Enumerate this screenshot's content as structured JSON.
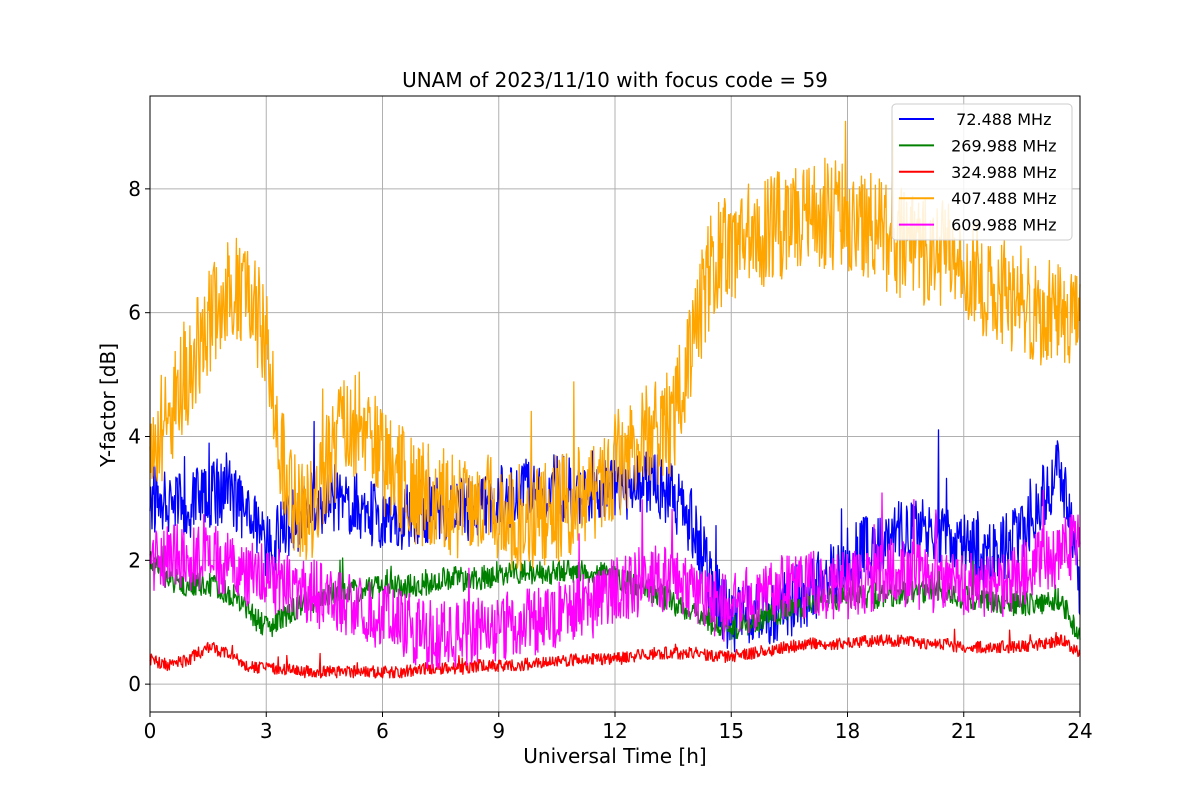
{
  "chart_data": {
    "type": "line",
    "title": "UNAM of 2023/11/10 with focus code = 59",
    "xlabel": "Universal Time [h]",
    "ylabel": "Y-factor [dB]",
    "xlim": [
      0,
      24
    ],
    "ylim": [
      -0.45,
      9.5
    ],
    "xticks": [
      0,
      3,
      6,
      9,
      12,
      15,
      18,
      21,
      24
    ],
    "yticks": [
      0,
      2,
      4,
      6,
      8
    ],
    "grid": true,
    "legend_position": "top-right",
    "series": [
      {
        "name": "  72.488 MHz",
        "color": "#0000ff",
        "noise": 0.55,
        "x": [
          0,
          0.5,
          1,
          1.5,
          2,
          2.5,
          3,
          3.5,
          4,
          4.5,
          5,
          5.5,
          6,
          6.5,
          7,
          7.5,
          8,
          8.5,
          9,
          9.5,
          10,
          10.5,
          11,
          11.5,
          12,
          12.5,
          13,
          13.5,
          14,
          14.5,
          15,
          15.5,
          16,
          16.5,
          17,
          17.5,
          18,
          18.5,
          19,
          19.5,
          20,
          20.5,
          21,
          21.5,
          22,
          22.5,
          23,
          23.5,
          24
        ],
        "y": [
          3.0,
          3.0,
          2.9,
          3.0,
          3.2,
          2.7,
          2.2,
          2.5,
          2.8,
          3.0,
          3.0,
          2.8,
          2.7,
          2.7,
          2.8,
          2.8,
          2.8,
          2.9,
          3.0,
          3.1,
          3.1,
          3.2,
          3.1,
          3.2,
          3.2,
          3.2,
          3.2,
          3.0,
          2.6,
          1.6,
          1.0,
          1.1,
          1.2,
          1.3,
          1.5,
          1.7,
          2.0,
          2.2,
          2.3,
          2.5,
          2.5,
          2.4,
          2.2,
          2.1,
          2.2,
          2.4,
          3.0,
          3.5,
          1.5
        ]
      },
      {
        "name": " 269.988 MHz",
        "color": "#008000",
        "noise": 0.2,
        "x": [
          0,
          0.5,
          1,
          1.5,
          2,
          2.5,
          3,
          3.5,
          4,
          4.5,
          5,
          5.5,
          6,
          6.5,
          7,
          7.5,
          8,
          8.5,
          9,
          9.5,
          10,
          10.5,
          11,
          11.5,
          12,
          12.5,
          13,
          13.5,
          14,
          14.5,
          15,
          15.5,
          16,
          16.5,
          17,
          17.5,
          18,
          18.5,
          19,
          19.5,
          20,
          20.5,
          21,
          21.5,
          22,
          22.5,
          23,
          23.5,
          24
        ],
        "y": [
          2.0,
          1.7,
          1.6,
          1.6,
          1.5,
          1.2,
          0.9,
          1.1,
          1.3,
          1.4,
          1.5,
          1.5,
          1.6,
          1.6,
          1.6,
          1.7,
          1.7,
          1.7,
          1.8,
          1.8,
          1.8,
          1.8,
          1.8,
          1.8,
          1.7,
          1.6,
          1.5,
          1.3,
          1.2,
          1.0,
          0.9,
          1.0,
          1.1,
          1.2,
          1.3,
          1.4,
          1.4,
          1.4,
          1.4,
          1.5,
          1.5,
          1.5,
          1.4,
          1.4,
          1.3,
          1.3,
          1.3,
          1.4,
          0.7
        ]
      },
      {
        "name": " 324.988 MHz",
        "color": "#ff0000",
        "noise": 0.1,
        "x": [
          0,
          0.5,
          1,
          1.5,
          2,
          2.5,
          3,
          3.5,
          4,
          4.5,
          5,
          5.5,
          6,
          6.5,
          7,
          7.5,
          8,
          8.5,
          9,
          9.5,
          10,
          10.5,
          11,
          11.5,
          12,
          12.5,
          13,
          13.5,
          14,
          14.5,
          15,
          15.5,
          16,
          16.5,
          17,
          17.5,
          18,
          18.5,
          19,
          19.5,
          20,
          20.5,
          21,
          21.5,
          22,
          22.5,
          23,
          23.5,
          24
        ],
        "y": [
          0.4,
          0.3,
          0.4,
          0.6,
          0.5,
          0.3,
          0.25,
          0.25,
          0.2,
          0.2,
          0.2,
          0.2,
          0.2,
          0.2,
          0.25,
          0.25,
          0.25,
          0.3,
          0.3,
          0.3,
          0.35,
          0.35,
          0.4,
          0.4,
          0.4,
          0.45,
          0.5,
          0.5,
          0.5,
          0.45,
          0.45,
          0.5,
          0.55,
          0.6,
          0.65,
          0.65,
          0.65,
          0.7,
          0.7,
          0.7,
          0.65,
          0.65,
          0.6,
          0.6,
          0.6,
          0.6,
          0.65,
          0.7,
          0.5
        ]
      },
      {
        "name": " 407.488 MHz",
        "color": "#ffa500",
        "noise": 0.9,
        "x": [
          0,
          0.5,
          1,
          1.5,
          2,
          2.5,
          3,
          3.5,
          4,
          4.5,
          5,
          5.5,
          6,
          6.5,
          7,
          7.5,
          8,
          8.5,
          9,
          9.5,
          10,
          10.5,
          11,
          11.5,
          12,
          12.5,
          13,
          13.5,
          14,
          14.5,
          15,
          15.5,
          16,
          16.5,
          17,
          17.5,
          18,
          18.5,
          19,
          19.5,
          20,
          20.5,
          21,
          21.5,
          22,
          22.5,
          23,
          23.5,
          24
        ],
        "y": [
          3.8,
          4.4,
          5.0,
          5.9,
          6.3,
          6.4,
          5.5,
          3.3,
          2.6,
          3.5,
          4.0,
          4.2,
          3.5,
          3.3,
          3.1,
          3.0,
          2.9,
          2.8,
          2.8,
          2.7,
          2.7,
          2.8,
          3.0,
          3.2,
          3.5,
          3.8,
          4.0,
          4.2,
          5.5,
          6.8,
          7.1,
          7.2,
          7.3,
          7.5,
          7.6,
          7.6,
          7.5,
          7.4,
          7.2,
          7.1,
          7.0,
          6.9,
          6.7,
          6.5,
          6.3,
          6.2,
          6.0,
          6.0,
          5.8
        ]
      },
      {
        "name": " 609.988 MHz",
        "color": "#ff00ff",
        "noise": 0.55,
        "x": [
          0,
          0.5,
          1,
          1.5,
          2,
          2.5,
          3,
          3.5,
          4,
          4.5,
          5,
          5.5,
          6,
          6.5,
          7,
          7.5,
          8,
          8.5,
          9,
          9.5,
          10,
          10.5,
          11,
          11.5,
          12,
          12.5,
          13,
          13.5,
          14,
          14.5,
          15,
          15.5,
          16,
          16.5,
          17,
          17.5,
          18,
          18.5,
          19,
          19.5,
          20,
          20.5,
          21,
          21.5,
          22,
          22.5,
          23,
          23.5,
          24
        ],
        "y": [
          2.0,
          2.1,
          2.0,
          2.0,
          2.0,
          1.8,
          1.7,
          1.6,
          1.5,
          1.4,
          1.3,
          1.2,
          1.1,
          1.0,
          0.8,
          0.8,
          0.8,
          0.9,
          0.9,
          1.0,
          1.0,
          1.1,
          1.2,
          1.3,
          1.5,
          1.6,
          1.7,
          1.7,
          1.6,
          1.3,
          1.2,
          1.4,
          1.5,
          1.6,
          1.6,
          1.6,
          1.6,
          1.7,
          1.8,
          1.8,
          1.7,
          1.6,
          1.6,
          1.6,
          1.6,
          1.8,
          2.0,
          2.1,
          2.3
        ]
      }
    ]
  }
}
